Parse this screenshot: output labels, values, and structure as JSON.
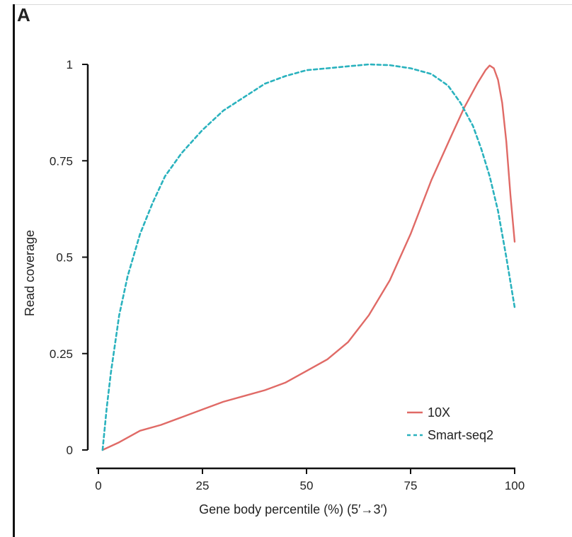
{
  "panel_label": "A",
  "chart_data": {
    "type": "line",
    "xlabel": "Gene body percentile (%) (5′→3′)",
    "ylabel": "Read coverage",
    "xlim": [
      0,
      100
    ],
    "ylim": [
      0,
      1
    ],
    "xticks": [
      0,
      25,
      50,
      75,
      100
    ],
    "yticks": [
      0,
      0.25,
      0.5,
      0.75,
      1
    ],
    "ytick_labels": [
      "0",
      "0.25",
      "0.5",
      "0.75",
      "1"
    ],
    "grid": false,
    "legend_position": "bottom-right",
    "series": [
      {
        "name": "10X",
        "color": "#e06a66",
        "style": "solid",
        "x": [
          1,
          5,
          10,
          15,
          20,
          25,
          30,
          35,
          40,
          45,
          50,
          55,
          60,
          65,
          70,
          75,
          80,
          85,
          88,
          91,
          93,
          94,
          95,
          96,
          97,
          98,
          99,
          100
        ],
        "y": [
          0.0,
          0.02,
          0.05,
          0.065,
          0.085,
          0.105,
          0.125,
          0.14,
          0.155,
          0.175,
          0.205,
          0.235,
          0.28,
          0.35,
          0.44,
          0.56,
          0.7,
          0.82,
          0.89,
          0.95,
          0.985,
          0.997,
          0.99,
          0.96,
          0.9,
          0.8,
          0.66,
          0.54
        ]
      },
      {
        "name": "Smart-seq2",
        "color": "#2ab2be",
        "style": "dashed",
        "x": [
          1,
          2,
          3,
          5,
          7,
          10,
          13,
          16,
          20,
          25,
          30,
          35,
          40,
          45,
          50,
          55,
          60,
          65,
          70,
          75,
          80,
          84,
          87,
          90,
          92,
          94,
          96,
          98,
          100
        ],
        "y": [
          0.0,
          0.11,
          0.2,
          0.35,
          0.45,
          0.56,
          0.64,
          0.71,
          0.77,
          0.83,
          0.88,
          0.915,
          0.95,
          0.97,
          0.985,
          0.99,
          0.995,
          1.0,
          0.998,
          0.99,
          0.975,
          0.945,
          0.9,
          0.84,
          0.78,
          0.71,
          0.62,
          0.5,
          0.37
        ]
      }
    ]
  }
}
